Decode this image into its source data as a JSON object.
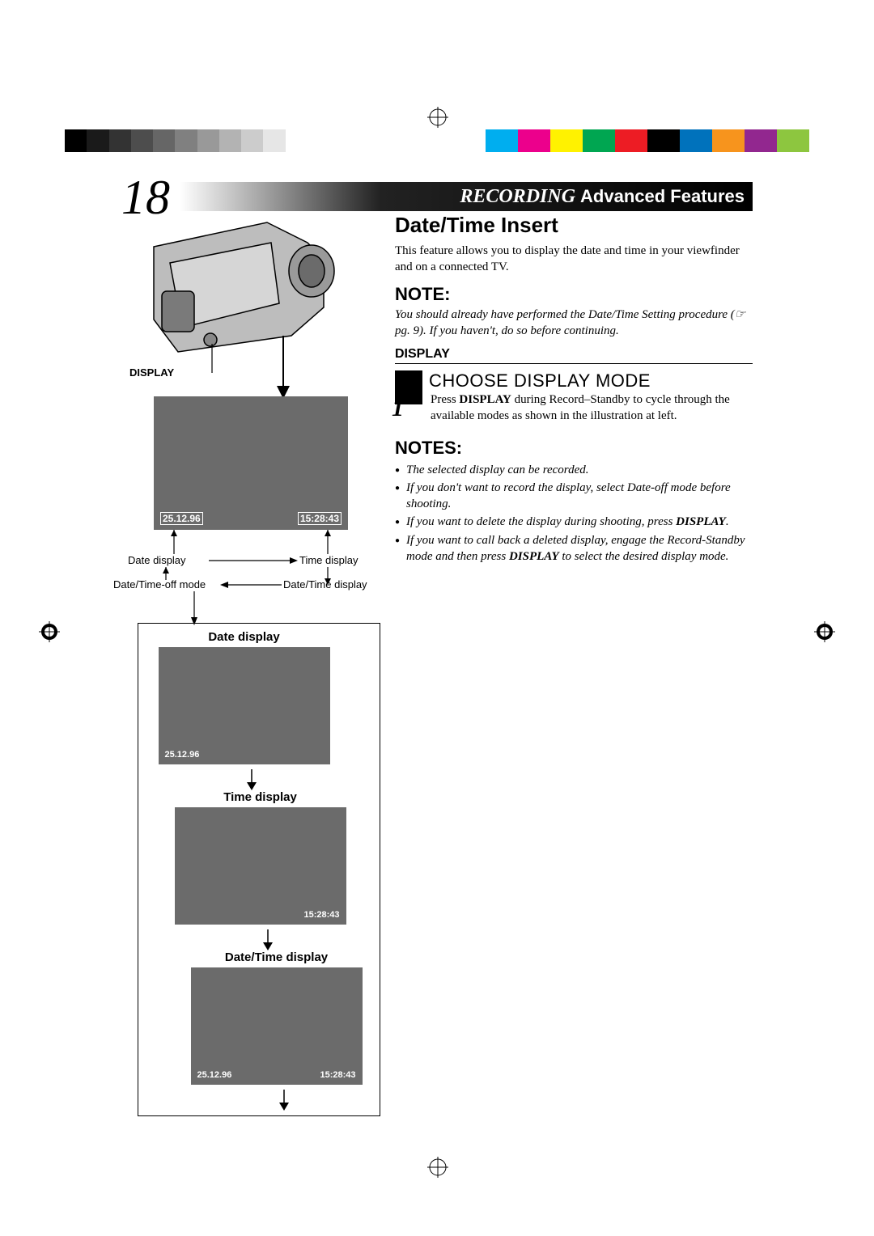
{
  "page_number": "18",
  "banner": {
    "recording": "RECORDING",
    "advanced": "Advanced Features"
  },
  "colorbar": {
    "left_gradient": [
      "#000000",
      "#1a1a1a",
      "#333333",
      "#4d4d4d",
      "#666666",
      "#808080",
      "#999999",
      "#b3b3b3",
      "#cccccc",
      "#e6e6e6",
      "#ffffff"
    ],
    "right_swatches": [
      "#00aeef",
      "#ec008c",
      "#fff200",
      "#00a651",
      "#ed1c24",
      "#000000",
      "#0072bc",
      "#f7941d",
      "#92278f",
      "#8dc63f"
    ]
  },
  "left": {
    "display_label": "DISPLAY",
    "first_screen": {
      "date": "25.12.96",
      "time": "15:28:43"
    },
    "annotations": {
      "date_display": "Date display",
      "time_display": "Time display",
      "dateoff_mode": "Date/Time-off mode",
      "datetime_display": "Date/Time display"
    },
    "modes": [
      {
        "title": "Date display",
        "date": "25.12.96",
        "time": ""
      },
      {
        "title": "Time display",
        "date": "",
        "time": "15:28:43"
      },
      {
        "title": "Date/Time display",
        "date": "25.12.96",
        "time": "15:28:43"
      }
    ]
  },
  "right": {
    "heading": "Date/Time Insert",
    "intro": "This feature allows you to display the date and time in your viewfinder and on a connected TV.",
    "note_hd": "NOTE:",
    "note_body_1": "You should already have performed the Date/Time Setting procedure (☞ pg. 9). If you haven't, do so before continuing.",
    "display_hd": "DISPLAY",
    "step_title": "CHOOSE DISPLAY MODE",
    "step_num": "1",
    "step_body_pre": "Press ",
    "step_body_bold": "DISPLAY",
    "step_body_post": " during Record–Standby to cycle through the available modes as shown in the illustration at left.",
    "notes_hd": "NOTES:",
    "notes": [
      {
        "pre": "",
        "t": "The selected display can be recorded."
      },
      {
        "pre": "",
        "t": "If you don't want to record the display, select Date-off mode before shooting."
      },
      {
        "pre": "If you want to delete the display during shooting, press ",
        "b": "DISPLAY",
        "post": "."
      },
      {
        "pre": "If you want to call back a deleted display, engage the Record-Standby mode and then press ",
        "b": "DISPLAY",
        "post": " to select the desired display mode."
      }
    ]
  }
}
